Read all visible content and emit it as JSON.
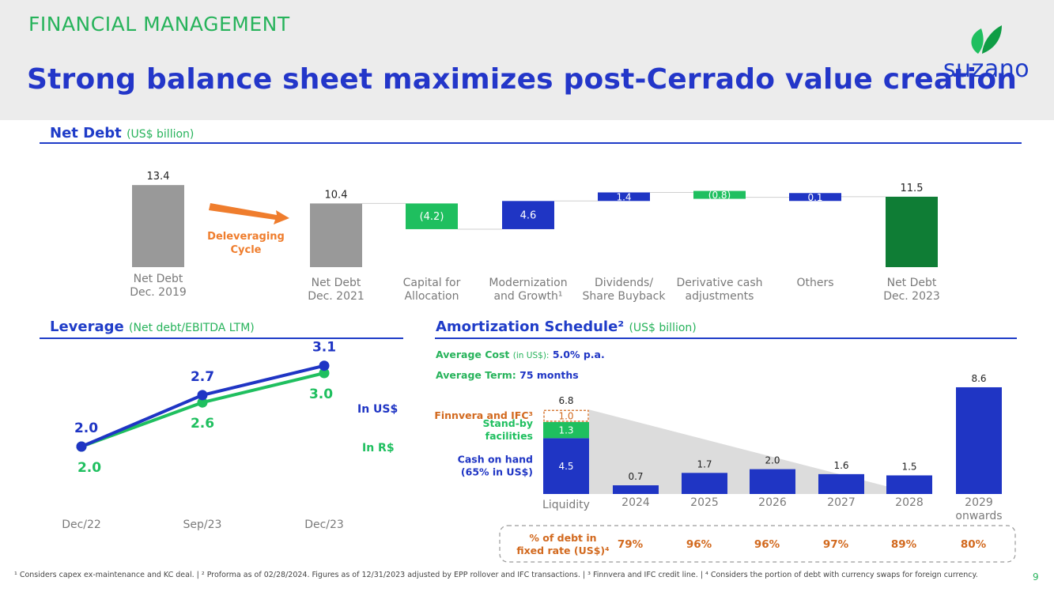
{
  "header": {
    "section_label": "FINANCIAL MANAGEMENT",
    "title": "Strong balance sheet maximizes post-Cerrado value creation",
    "logo_text": "suzano",
    "logo_icon": "leaf-icon"
  },
  "net_debt_panel": {
    "title": "Net Debt",
    "subtitle": "(US$ billion)",
    "arrow_label_line1": "Deleveraging",
    "arrow_label_line2": "Cycle"
  },
  "leverage_panel": {
    "title": "Leverage",
    "subtitle": "(Net debt/EBITDA LTM)"
  },
  "amortization_panel": {
    "title": "Amortization Schedule²",
    "subtitle": "(US$ billion)",
    "avg_cost_label": "Average Cost",
    "avg_cost_unit": "(in US$):",
    "avg_cost_value": "5.0% p.a.",
    "avg_term_label": "Average Term:",
    "avg_term_value": "75 months",
    "fixed_rate_label_line1": "% of debt in",
    "fixed_rate_label_line2": "fixed rate (US$)⁴",
    "fixed_rate_values": [
      "79%",
      "96%",
      "96%",
      "97%",
      "89%",
      "80%"
    ]
  },
  "chart_data": [
    {
      "type": "bar",
      "subtype": "waterfall",
      "title": "Net Debt (US$ billion)",
      "categories": [
        "Net Debt Dec. 2019",
        "Net Debt Dec. 2021",
        "Capital for Allocation",
        "Modernization and Growth¹",
        "Dividends/ Share Buyback",
        "Derivative cash adjustments",
        "Others",
        "Net Debt Dec. 2023"
      ],
      "category_lines": [
        [
          "Net Debt",
          "Dec. 2019"
        ],
        [
          "Net Debt",
          "Dec. 2021"
        ],
        [
          "Capital for",
          "Allocation"
        ],
        [
          "Modernization",
          "and Growth¹"
        ],
        [
          "Dividends/",
          "Share Buyback"
        ],
        [
          "Derivative cash",
          "adjustments"
        ],
        [
          "Others"
        ],
        [
          "Net Debt",
          "Dec. 2023"
        ]
      ],
      "values": [
        13.4,
        10.4,
        -4.2,
        4.6,
        1.4,
        -0.8,
        0.1,
        11.5
      ],
      "labels": [
        "13.4",
        "10.4",
        "(4.2)",
        "4.6",
        "1.4",
        "(0.8)",
        "0.1",
        "11.5"
      ],
      "kinds": [
        "total",
        "total",
        "delta",
        "delta",
        "delta",
        "delta",
        "delta",
        "total"
      ],
      "colors": [
        "#999999",
        "#999999",
        "#1fbf5f",
        "#1f35c4",
        "#1f35c4",
        "#1fbf5f",
        "#1f35c4",
        "#0f7d35"
      ]
    },
    {
      "type": "line",
      "title": "Leverage (Net debt/EBITDA LTM)",
      "categories": [
        "Dec/22",
        "Sep/23",
        "Dec/23"
      ],
      "series": [
        {
          "name": "In US$",
          "values": [
            2.0,
            2.7,
            3.1
          ],
          "color": "#1f35c4"
        },
        {
          "name": "In R$",
          "values": [
            2.0,
            2.6,
            3.0
          ],
          "color": "#1fbf5f"
        }
      ],
      "value_labels": {
        "In US$": [
          "2.0",
          "2.7",
          "3.1"
        ],
        "In R$": [
          "2.0",
          "2.6",
          "3.0"
        ]
      }
    },
    {
      "type": "bar",
      "subtype": "stacked",
      "title": "Amortization Schedule² (US$ billion)",
      "categories": [
        "Liquidity",
        "2024",
        "2025",
        "2026",
        "2027",
        "2028",
        "2029 onwards"
      ],
      "category_lines": [
        [
          "Liquidity"
        ],
        [
          "2024"
        ],
        [
          "2025"
        ],
        [
          "2026"
        ],
        [
          "2027"
        ],
        [
          "2028"
        ],
        [
          "2029",
          "onwards"
        ]
      ],
      "values": [
        6.8,
        0.7,
        1.7,
        2.0,
        1.6,
        1.5,
        8.6
      ],
      "labels": [
        "6.8",
        "0.7",
        "1.7",
        "2.0",
        "1.6",
        "1.5",
        "8.6"
      ],
      "liquidity_breakdown": [
        {
          "name": "Cash on hand (65% in US$)",
          "lines": [
            "Cash on hand",
            "(65% in US$)"
          ],
          "value": 4.5,
          "label": "4.5",
          "color": "#1f35c4"
        },
        {
          "name": "Stand-by facilities",
          "lines": [
            "Stand-by",
            "facilities"
          ],
          "value": 1.3,
          "label": "1.3",
          "color": "#1fbf5f"
        },
        {
          "name": "Finnvera and IFC³",
          "lines": [
            "Finnvera and IFC³"
          ],
          "value": 1.0,
          "label": "1.0",
          "color": "#d2691e"
        }
      ],
      "bar_color": "#1f35c4"
    }
  ],
  "footnote": "¹ Considers capex ex-maintenance and KC deal. | ² Proforma as of 02/28/2024. Figures as of 12/31/2023 adjusted by EPP rollover and IFC transactions. | ³ Finnvera and IFC credit line. | ⁴ Considers the portion of debt with currency swaps for foreign currency.",
  "page_number": "9"
}
